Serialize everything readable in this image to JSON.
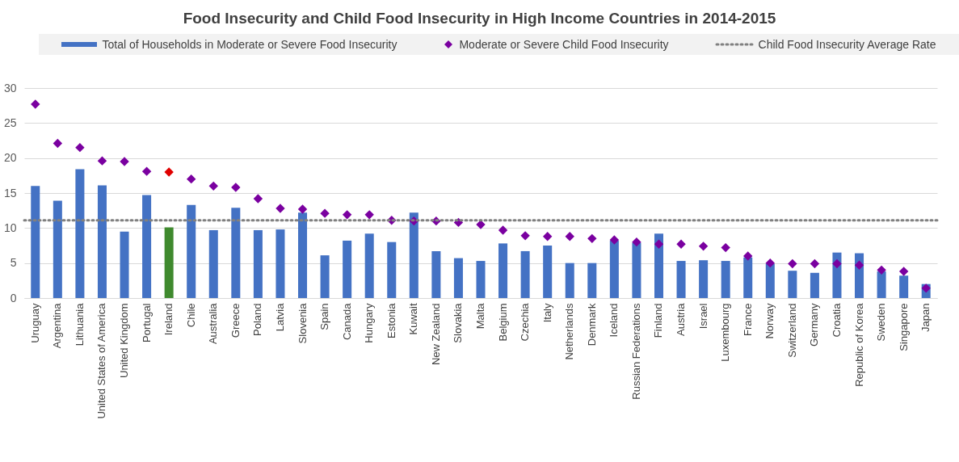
{
  "chart_data": {
    "type": "bar",
    "title": "Food Insecurity and Child Food Insecurity in High Income Countries in 2014-2015",
    "categories": [
      "Uruguay",
      "Argentina",
      "Lithuania",
      "United States of America",
      "United Kingdom",
      "Portugal",
      "Ireland",
      "Chile",
      "Australia",
      "Greece",
      "Poland",
      "Latvia",
      "Slovenia",
      "Spain",
      "Canada",
      "Hungary",
      "Estonia",
      "Kuwait",
      "New Zealand",
      "Slovakia",
      "Malta",
      "Belgium",
      "Czechia",
      "Italy",
      "Netherlands",
      "Denmark",
      "Iceland",
      "Russian Federations",
      "Finland",
      "Austria",
      "Israel",
      "Luxembourg",
      "France",
      "Norway",
      "Switzerland",
      "Germany",
      "Croatia",
      "Republic of Korea",
      "Sweden",
      "Singapore",
      "Japan"
    ],
    "series": [
      {
        "name": "Total of Households in Moderate or Severe Food Insecurity",
        "color": "#4472c4",
        "colors": [
          "#4472c4",
          "#4472c4",
          "#4472c4",
          "#4472c4",
          "#4472c4",
          "#4472c4",
          "#3f8a2e",
          "#4472c4",
          "#4472c4",
          "#4472c4",
          "#4472c4",
          "#4472c4",
          "#4472c4",
          "#4472c4",
          "#4472c4",
          "#4472c4",
          "#4472c4",
          "#4472c4",
          "#4472c4",
          "#4472c4",
          "#4472c4",
          "#4472c4",
          "#4472c4",
          "#4472c4",
          "#4472c4",
          "#4472c4",
          "#4472c4",
          "#4472c4",
          "#4472c4",
          "#4472c4",
          "#4472c4",
          "#4472c4",
          "#4472c4",
          "#4472c4",
          "#4472c4",
          "#4472c4",
          "#4472c4",
          "#4472c4",
          "#4472c4",
          "#4472c4",
          "#4472c4"
        ],
        "values": [
          16.0,
          13.9,
          18.4,
          16.1,
          9.5,
          14.7,
          10.1,
          13.3,
          9.7,
          12.9,
          9.7,
          9.8,
          12.2,
          6.1,
          8.2,
          9.2,
          8.0,
          12.2,
          6.7,
          5.7,
          5.3,
          7.8,
          6.7,
          7.5,
          5.0,
          5.0,
          8.2,
          7.9,
          9.2,
          5.3,
          5.4,
          5.3,
          5.8,
          4.9,
          3.9,
          3.6,
          6.5,
          6.4,
          3.8,
          3.2,
          2.0
        ]
      },
      {
        "name": "Moderate or Severe Child Food Insecurity",
        "type": "scatter",
        "color": "#7a00a0",
        "colors": [
          "#7a00a0",
          "#7a00a0",
          "#7a00a0",
          "#7a00a0",
          "#7a00a0",
          "#7a00a0",
          "#e00000",
          "#7a00a0",
          "#7a00a0",
          "#7a00a0",
          "#7a00a0",
          "#7a00a0",
          "#7a00a0",
          "#7a00a0",
          "#7a00a0",
          "#7a00a0",
          "#7a00a0",
          "#7a00a0",
          "#7a00a0",
          "#7a00a0",
          "#7a00a0",
          "#7a00a0",
          "#7a00a0",
          "#7a00a0",
          "#7a00a0",
          "#7a00a0",
          "#7a00a0",
          "#7a00a0",
          "#7a00a0",
          "#7a00a0",
          "#7a00a0",
          "#7a00a0",
          "#7a00a0",
          "#7a00a0",
          "#7a00a0",
          "#7a00a0",
          "#7a00a0",
          "#7a00a0",
          "#7a00a0",
          "#7a00a0",
          "#7a00a0"
        ],
        "values": [
          27.7,
          22.1,
          21.5,
          19.6,
          19.5,
          18.1,
          18.0,
          17.0,
          16.0,
          15.8,
          14.2,
          12.8,
          12.7,
          12.1,
          11.9,
          11.9,
          11.1,
          11.0,
          11.0,
          10.8,
          10.5,
          9.7,
          8.9,
          8.8,
          8.8,
          8.5,
          8.3,
          8.0,
          7.7,
          7.7,
          7.4,
          7.2,
          6.0,
          5.0,
          4.9,
          4.9,
          4.9,
          4.7,
          4.0,
          3.8,
          1.4
        ]
      }
    ],
    "ref_lines": [
      {
        "axis": "y",
        "value": 11.1,
        "label": "Child Food Insecurity Average Rate",
        "color": "#808080",
        "line_style": "dotted"
      }
    ],
    "ylim": [
      0,
      30
    ],
    "yticks": [
      0,
      5,
      10,
      15,
      20,
      25,
      30
    ],
    "grid": "y",
    "legend": "top",
    "marker": "diamond"
  }
}
